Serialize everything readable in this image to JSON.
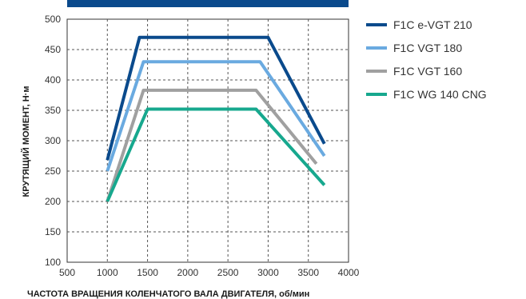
{
  "chart_data": {
    "type": "line",
    "xlabel": "ЧАСТОТА ВРАЩЕНИЯ КОЛЕНЧАТОГО ВАЛА ДВИГАТЕЛЯ, об/мин",
    "ylabel": "КРУТЯЩИЙ МОМЕНТ, Н·м",
    "xlim": [
      500,
      4000
    ],
    "ylim": [
      100,
      500
    ],
    "xticks": [
      "500",
      "1000",
      "1500",
      "2000",
      "2500",
      "3000",
      "3500",
      "4000"
    ],
    "yticks": [
      "100",
      "150",
      "200",
      "250",
      "300",
      "350",
      "400",
      "450",
      "500"
    ],
    "grid": true,
    "legend_position": "right",
    "series": [
      {
        "name": "F1C e-VGT 210",
        "color": "#0a4a8c",
        "points": [
          [
            1000,
            268
          ],
          [
            1400,
            470
          ],
          [
            3000,
            470
          ],
          [
            3700,
            295
          ]
        ]
      },
      {
        "name": "F1C VGT 180",
        "color": "#6aaae0",
        "points": [
          [
            1000,
            250
          ],
          [
            1450,
            430
          ],
          [
            2900,
            430
          ],
          [
            3700,
            275
          ]
        ]
      },
      {
        "name": "F1C VGT 160",
        "color": "#a0a0a0",
        "points": [
          [
            1000,
            200
          ],
          [
            1450,
            383
          ],
          [
            2850,
            383
          ],
          [
            3600,
            262
          ]
        ]
      },
      {
        "name": "F1C WG 140 CNG",
        "color": "#17a88e",
        "points": [
          [
            1000,
            200
          ],
          [
            1500,
            352
          ],
          [
            2850,
            352
          ],
          [
            3700,
            227
          ]
        ]
      }
    ]
  },
  "header_bar_color": "#0a4a8c"
}
